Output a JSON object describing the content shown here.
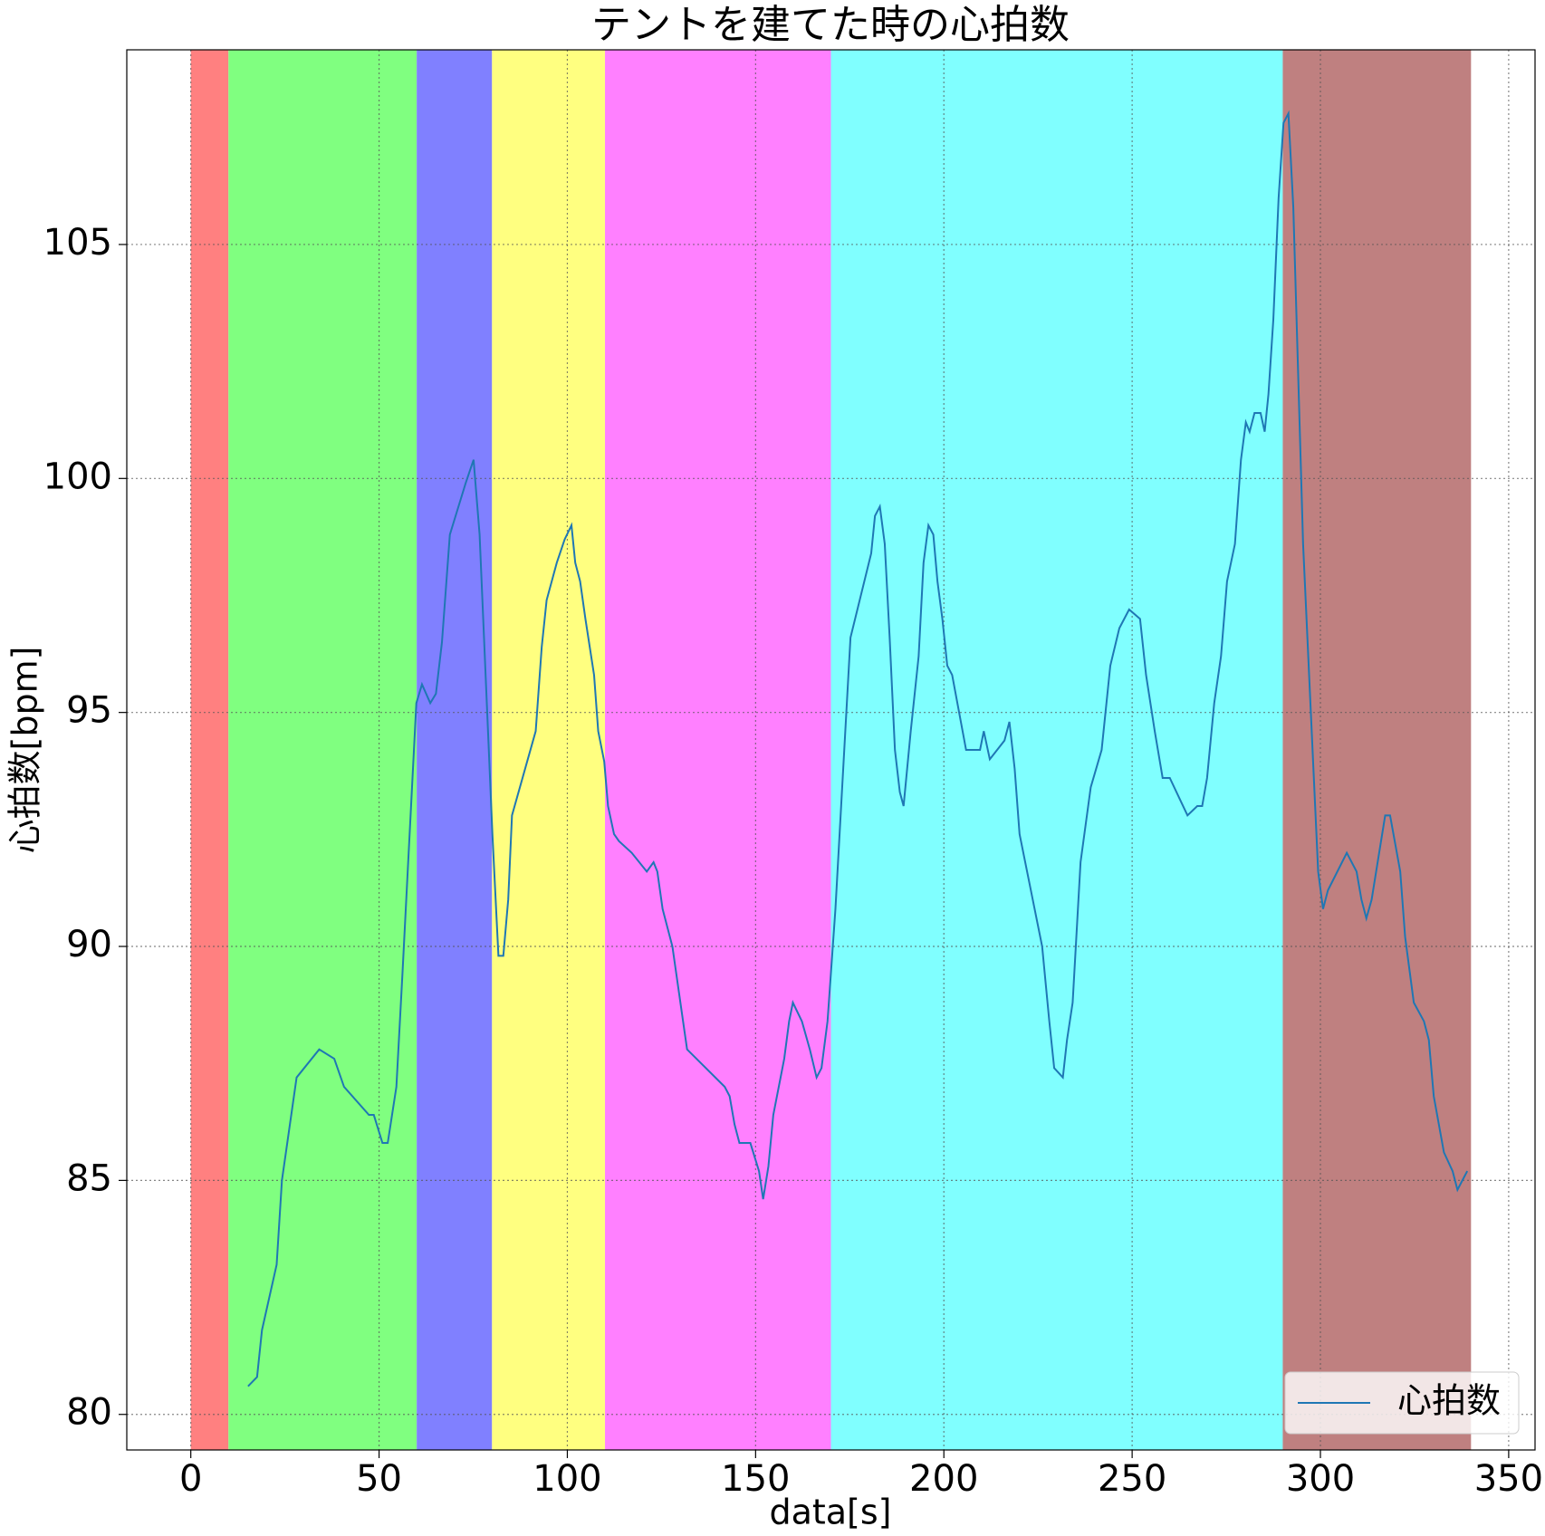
{
  "chart_data": {
    "type": "line",
    "title": "テントを建てた時の心拍数",
    "xlabel": "data[s]",
    "ylabel": "心拍数[bpm]",
    "xlim": [
      -17,
      357
    ],
    "ylim": [
      79.24,
      109.16
    ],
    "xticks": [
      0,
      50,
      100,
      150,
      200,
      250,
      300,
      350
    ],
    "yticks": [
      80,
      85,
      90,
      95,
      100,
      105
    ],
    "grid": true,
    "legend": "lower right",
    "spans": [
      {
        "start": 0,
        "end": 10,
        "color": "#ff8080"
      },
      {
        "start": 10,
        "end": 60,
        "color": "#80ff80"
      },
      {
        "start": 60,
        "end": 80,
        "color": "#8080ff"
      },
      {
        "start": 80,
        "end": 110,
        "color": "#ffff80"
      },
      {
        "start": 110,
        "end": 170,
        "color": "#ff80ff"
      },
      {
        "start": 170,
        "end": 290,
        "color": "#80ffff"
      },
      {
        "start": 290,
        "end": 340,
        "color": "#bf8080"
      }
    ],
    "series": [
      {
        "name": "心拍数",
        "color": "#1f77b4",
        "x": [
          15.2,
          17.6,
          18.9,
          22.8,
          24.2,
          28.1,
          34.1,
          38.1,
          40.7,
          47.3,
          48.6,
          50.9,
          52.3,
          54.6,
          56.2,
          59.9,
          61.4,
          63.6,
          65.1,
          66.7,
          68.8,
          73.0,
          75.1,
          76.7,
          80.1,
          81.7,
          83.0,
          84.3,
          85.3,
          91.6,
          93.2,
          94.5,
          97.2,
          99.3,
          101.1,
          102.1,
          103.4,
          104.8,
          107.1,
          108.2,
          109.8,
          110.8,
          112.4,
          113.7,
          117.1,
          121.1,
          122.9,
          123.9,
          125.3,
          127.9,
          131.8,
          141.8,
          143.1,
          144.4,
          145.7,
          148.6,
          150.9,
          152.0,
          153.4,
          154.7,
          157.6,
          158.9,
          159.9,
          162.3,
          164.4,
          166.2,
          167.5,
          169.1,
          171.2,
          175.2,
          180.7,
          181.7,
          183.0,
          184.3,
          185.6,
          187.0,
          188.3,
          189.3,
          191.2,
          193.3,
          194.6,
          195.9,
          197.2,
          198.3,
          199.6,
          200.9,
          202.2,
          205.9,
          209.6,
          210.6,
          212.2,
          216.1,
          217.4,
          218.8,
          220.1,
          226.1,
          228.0,
          229.3,
          231.6,
          232.7,
          234.2,
          236.3,
          239.0,
          241.9,
          244.2,
          246.6,
          249.2,
          252.1,
          253.7,
          256.0,
          258.1,
          260.0,
          264.7,
          267.3,
          268.6,
          269.9,
          271.8,
          273.6,
          275.2,
          277.3,
          278.9,
          280.2,
          281.2,
          282.5,
          284.1,
          285.2,
          286.2,
          287.5,
          288.9,
          290.2,
          291.5,
          292.8,
          295.4,
          299.4,
          300.7,
          302.0,
          307.0,
          309.6,
          310.9,
          312.2,
          313.6,
          317.2,
          318.5,
          321.2,
          322.5,
          324.8,
          327.5,
          328.8,
          330.1,
          332.8,
          335.1,
          336.4,
          339.0
        ],
        "values": [
          80.6,
          80.8,
          81.8,
          83.2,
          85.0,
          87.2,
          87.8,
          87.6,
          87.0,
          86.4,
          86.4,
          85.8,
          85.8,
          87.0,
          89.4,
          95.2,
          95.6,
          95.2,
          95.4,
          96.5,
          98.8,
          99.9,
          100.4,
          98.8,
          92.4,
          89.8,
          89.8,
          91.0,
          92.8,
          94.6,
          96.4,
          97.4,
          98.2,
          98.7,
          99.0,
          98.2,
          97.8,
          97.0,
          95.8,
          94.6,
          93.95,
          93.0,
          92.4,
          92.25,
          92.0,
          91.6,
          91.8,
          91.6,
          90.8,
          90.0,
          87.8,
          87.0,
          86.8,
          86.2,
          85.8,
          85.8,
          85.2,
          84.6,
          85.3,
          86.4,
          87.6,
          88.4,
          88.8,
          88.4,
          87.8,
          87.2,
          87.4,
          88.4,
          90.8,
          96.6,
          98.4,
          99.2,
          99.4,
          98.6,
          96.6,
          94.2,
          93.3,
          93.0,
          94.6,
          96.2,
          98.2,
          99.0,
          98.8,
          97.8,
          97.0,
          96.0,
          95.8,
          94.2,
          94.2,
          94.6,
          94.0,
          94.4,
          94.8,
          93.8,
          92.4,
          90.0,
          88.4,
          87.4,
          87.2,
          88.0,
          88.8,
          91.8,
          93.4,
          94.2,
          96.0,
          96.8,
          97.2,
          97.0,
          95.8,
          94.6,
          93.6,
          93.6,
          92.8,
          93.0,
          93.0,
          93.6,
          95.2,
          96.2,
          97.8,
          98.6,
          100.4,
          101.2,
          101.0,
          101.4,
          101.4,
          101.0,
          101.8,
          103.4,
          106.0,
          107.6,
          107.8,
          105.8,
          98.6,
          91.6,
          90.8,
          91.2,
          92.0,
          91.6,
          91.0,
          90.6,
          91.0,
          92.8,
          92.8,
          91.6,
          90.2,
          88.8,
          88.4,
          88.0,
          86.8,
          85.6,
          85.2,
          84.8,
          85.2
        ]
      }
    ]
  }
}
